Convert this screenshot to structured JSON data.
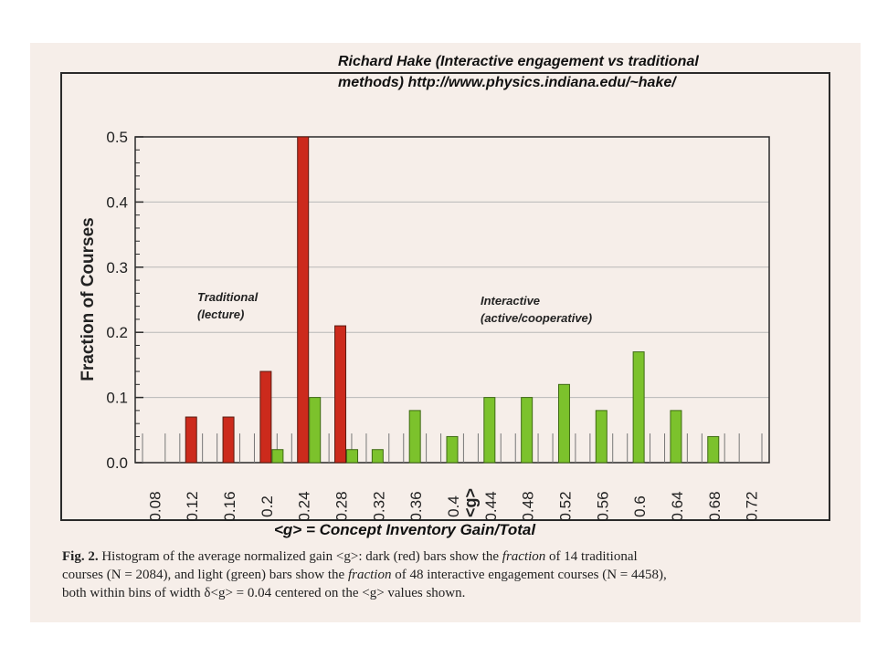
{
  "heading": {
    "line1": "Richard Hake (Interactive engagement vs traditional",
    "line2": "methods) http://www.physics.indiana.edu/~hake/"
  },
  "chart_data": {
    "type": "bar",
    "xlabel": "<g>",
    "ylabel": "Fraction of Courses",
    "ylim": [
      0,
      0.5
    ],
    "yticks": [
      "0.0",
      "0.1",
      "0.2",
      "0.3",
      "0.4",
      "0.5"
    ],
    "categories": [
      "0.08",
      "0.12",
      "0.16",
      "0.2",
      "0.24",
      "0.28",
      "0.32",
      "0.36",
      "0.4",
      "0.44",
      "0.48",
      "0.52",
      "0.56",
      "0.6",
      "0.64",
      "0.68",
      "0.72"
    ],
    "grid": true,
    "series": [
      {
        "name": "Traditional (lecture)",
        "color": "#cc2a1c",
        "values": [
          0,
          0.07,
          0.07,
          0.14,
          0.5,
          0.21,
          0,
          0,
          0,
          0,
          0,
          0,
          0,
          0,
          0,
          0,
          0
        ]
      },
      {
        "name": "Interactive (active/cooperative)",
        "color": "#7cc22c",
        "values": [
          0,
          0,
          0,
          0.02,
          0.1,
          0.02,
          0.02,
          0.08,
          0.04,
          0.1,
          0.1,
          0.12,
          0.08,
          0.17,
          0.08,
          0.04,
          0
        ]
      }
    ],
    "annotations": [
      {
        "line1": "Traditional",
        "line2": "(lecture)"
      },
      {
        "line1": "Interactive",
        "line2": "(active/cooperative)"
      }
    ]
  },
  "subtitle": "<g> = Concept Inventory Gain/Total",
  "caption": {
    "label": "Fig. 2.",
    "l1a": "Histogram of the average normalized gain <g>:  dark (red) bars show the ",
    "l1em": "fraction",
    "l1b": " of 14 traditional",
    "l2a": "courses (N = 2084), and light (green) bars show the ",
    "l2em": "fraction",
    "l2b": " of 48 interactive engagement courses (N = 4458),",
    "l3": "both within bins of width δ<g> = 0.04 centered on the <g> values shown."
  },
  "colors": {
    "paper": "#f6eee9",
    "frame": "#2a2a2a",
    "grid": "#b8b8b8"
  }
}
